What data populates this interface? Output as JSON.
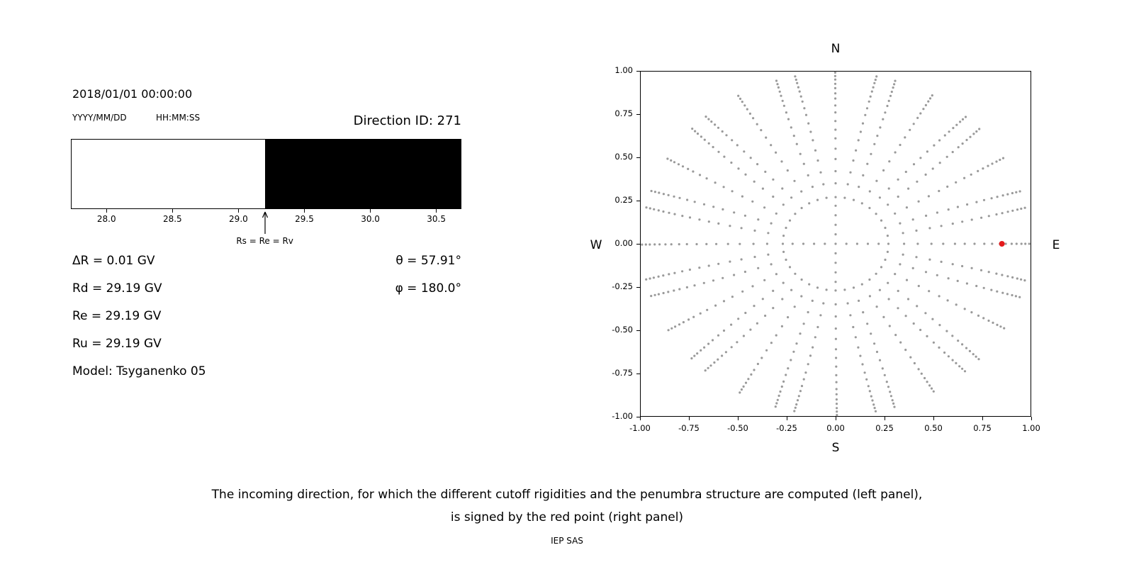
{
  "page": {
    "caption_line1": "The incoming direction, for which the different cutoff rigidities and the penumbra structure are computed (left panel),",
    "caption_line2": "is signed by the red point (right panel)",
    "credit": "IEP SAS"
  },
  "header": {
    "datetime": "2018/01/01 00:00:00",
    "date_format": "YYYY/MM/DD",
    "time_format": "HH:MM:SS",
    "direction_id": "Direction ID: 271"
  },
  "rigidity_info": {
    "delta_r": "ΔR = 0.01 GV",
    "rd": "Rd = 29.19 GV",
    "re": "Re = 29.19 GV",
    "ru": "Ru = 29.19 GV",
    "model": "Model: Tsyganenko 05",
    "theta": "θ = 57.91°",
    "phi": "φ = 180.0°"
  },
  "chart_data": [
    {
      "name": "penumbra-structure",
      "type": "bar",
      "xlim": [
        27.73,
        30.69
      ],
      "xticks": [
        "28.0",
        "28.5",
        "29.0",
        "29.5",
        "30.0",
        "30.5"
      ],
      "regions": [
        {
          "from": 27.73,
          "to": 29.2,
          "color": "#ffffff"
        },
        {
          "from": 29.2,
          "to": 30.69,
          "color": "#000000"
        }
      ],
      "marker": {
        "x": 29.2,
        "label": "Rs = Re = Rv"
      }
    },
    {
      "name": "incoming-direction-map",
      "type": "scatter",
      "xlim": [
        -1.0,
        1.0
      ],
      "ylim": [
        -1.0,
        1.0
      ],
      "xticks": [
        "-1.00",
        "-0.75",
        "-0.50",
        "-0.25",
        "0.00",
        "0.25",
        "0.50",
        "0.75",
        "1.00"
      ],
      "yticks": [
        "1.00",
        "0.75",
        "0.50",
        "0.25",
        "0.00",
        "-0.25",
        "-0.50",
        "-0.75",
        "-1.00"
      ],
      "compass": {
        "north": "N",
        "south": "S",
        "east": "E",
        "west": "W"
      },
      "spokes": {
        "count": 36,
        "start_deg": 0,
        "step_deg": 10,
        "radii": [
          0.27,
          0.35,
          0.42,
          0.49,
          0.55,
          0.61,
          0.66,
          0.71,
          0.76,
          0.8,
          0.84,
          0.87,
          0.9,
          0.925,
          0.95,
          0.97,
          0.99
        ]
      },
      "axis_inner_radii": [
        0.055,
        0.11,
        0.165,
        0.22
      ],
      "center_dot": true,
      "dot_color": "#9a9a9a",
      "dot_radius": 1.6,
      "red_point": {
        "x": 0.85,
        "y": 0.0,
        "radius": 4,
        "color": "#e41a1c"
      }
    }
  ]
}
